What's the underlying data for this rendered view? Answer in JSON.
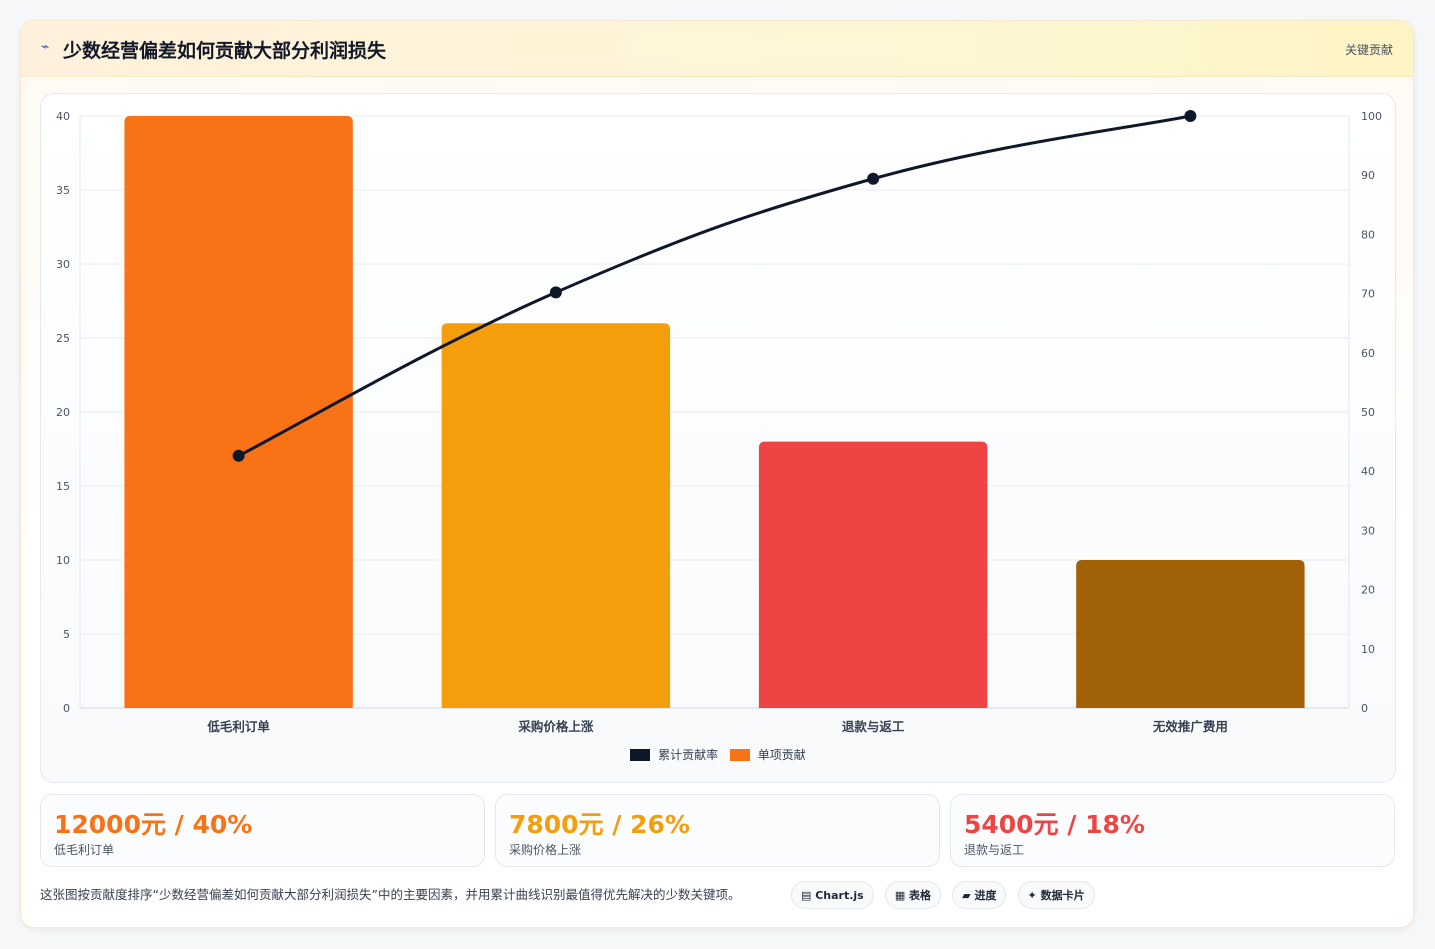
{
  "header": {
    "icon": "bolt-icon",
    "title": "少数经营偏差如何贡献大部分利润损失",
    "tag": "关键贡献"
  },
  "chart_data": {
    "type": "bar",
    "categories": [
      "低毛利订单",
      "采购价格上涨",
      "退款与返工",
      "无效推广费用"
    ],
    "series": [
      {
        "name": "单项贡献",
        "type": "bar",
        "axis": "left",
        "values": [
          40,
          26,
          18,
          10
        ],
        "colors": [
          "#f97316",
          "#f59e0b",
          "#ef4444",
          "#a16207"
        ]
      },
      {
        "name": "累计贡献率",
        "type": "line",
        "axis": "right",
        "values": [
          42.6,
          70.2,
          89.4,
          100
        ],
        "color": "#0f172a"
      }
    ],
    "y_left": {
      "min": 0,
      "max": 40,
      "ticks": [
        0,
        5,
        10,
        15,
        20,
        25,
        30,
        35,
        40
      ]
    },
    "y_right": {
      "min": 0,
      "max": 100,
      "ticks": [
        0,
        10,
        20,
        30,
        40,
        50,
        60,
        70,
        80,
        90,
        100
      ]
    },
    "grid": true,
    "legend": "bottom"
  },
  "legend": [
    {
      "label": "累计贡献率",
      "color": "#0f172a"
    },
    {
      "label": "单项贡献",
      "color": "#f97316"
    }
  ],
  "stats": [
    {
      "value": "12000元 / 40%",
      "label": "低毛利订单",
      "color": "#f97316"
    },
    {
      "value": "7800元 / 26%",
      "label": "采购价格上涨",
      "color": "#f59e0b"
    },
    {
      "value": "5400元 / 18%",
      "label": "退款与返工",
      "color": "#ef4444"
    }
  ],
  "footer": {
    "note": "这张图按贡献度排序“少数经营偏差如何贡献大部分利润损失”中的主要因素，并用累计曲线识别最值得优先解决的少数关键项。",
    "chips": [
      "▤ Chart.js",
      "▦ 表格",
      "▰ 进度",
      "✦ 数据卡片"
    ]
  }
}
